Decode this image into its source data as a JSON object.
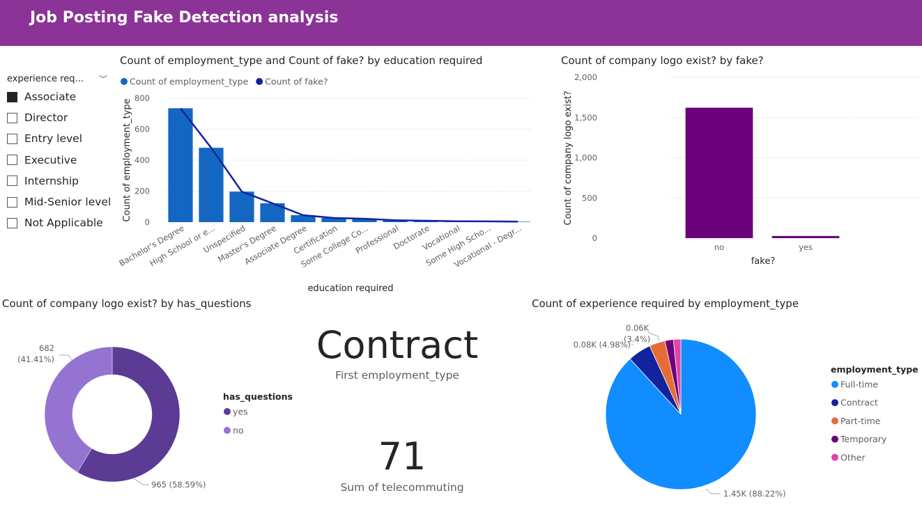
{
  "header": {
    "title": "Job Posting Fake Detection analysis",
    "color": "#8b3396"
  },
  "slicer": {
    "title": "experience req...",
    "items": [
      {
        "label": "Associate",
        "checked": true
      },
      {
        "label": "Director",
        "checked": false
      },
      {
        "label": "Entry level",
        "checked": false
      },
      {
        "label": "Executive",
        "checked": false
      },
      {
        "label": "Internship",
        "checked": false
      },
      {
        "label": "Mid-Senior level",
        "checked": false
      },
      {
        "label": "Not Applicable",
        "checked": false
      }
    ]
  },
  "cards": {
    "first_employment": {
      "value": "Contract",
      "label": "First employment_type"
    },
    "telecommuting": {
      "value": "71",
      "label": "Sum of telecommuting"
    }
  },
  "chart_data": [
    {
      "type": "bar",
      "title": "Count of employment_type and Count of fake? by education required",
      "xlabel": "education required",
      "ylabel": "Count of employment_type",
      "ylim": [
        0,
        800
      ],
      "yticks": [
        0,
        200,
        400,
        600,
        800
      ],
      "categories": [
        "Bachelor's Degree",
        "High School or e...",
        "Unspecified",
        "Master's Degree",
        "Associate Degree",
        "Certification",
        "Some College Co...",
        "Professional",
        "Doctorate",
        "Vocational",
        "Some High Scho...",
        "Vocational - Degr..."
      ],
      "series": [
        {
          "name": "Count of employment_type",
          "type": "bar",
          "color": "#1367c2",
          "values": [
            735,
            480,
            197,
            122,
            45,
            27,
            22,
            12,
            9,
            6,
            5,
            3
          ]
        },
        {
          "name": "Count of fake?",
          "type": "line",
          "color": "#12239e",
          "values": [
            735,
            480,
            197,
            122,
            45,
            27,
            22,
            12,
            9,
            6,
            5,
            3
          ]
        }
      ],
      "legend": "top-left",
      "grid": true
    },
    {
      "type": "bar",
      "title": "Count of company logo exist? by fake?",
      "xlabel": "fake?",
      "ylabel": "Count of company logo exist?",
      "ylim": [
        0,
        2000
      ],
      "yticks": [
        "0",
        "500",
        "1,000",
        "1,500",
        "2,000"
      ],
      "categories": [
        "no",
        "yes"
      ],
      "values": [
        1622,
        27
      ],
      "color": "#6b007b",
      "grid": true
    },
    {
      "type": "pie",
      "subtype": "donut",
      "title": "Count of company logo exist? by has_questions",
      "legend_title": "has_questions",
      "slices": [
        {
          "name": "yes",
          "value": 965,
          "label": "965 (58.59%)",
          "color": "#5b3b94"
        },
        {
          "name": "no",
          "value": 682,
          "label": "682 (41.41%)",
          "color": "#9473d1"
        }
      ]
    },
    {
      "type": "pie",
      "title": "Count of experience required by employment_type",
      "legend_title": "employment_type",
      "slices": [
        {
          "name": "Full-time",
          "value": 1450,
          "pct": 88.22,
          "label": "1.45K (88.22%)",
          "color": "#118dff"
        },
        {
          "name": "Contract",
          "value": 82,
          "pct": 4.98,
          "label": "0.08K (4.98%)",
          "color": "#12239e"
        },
        {
          "name": "Part-time",
          "value": 56,
          "pct": 3.4,
          "label_line1": "0.06K",
          "label_line2": "(3.4%)",
          "color": "#e66c37"
        },
        {
          "name": "Temporary",
          "value": 30,
          "pct": 1.8,
          "label": "",
          "color": "#6b007b"
        },
        {
          "name": "Other",
          "value": 26,
          "pct": 1.6,
          "label": "",
          "color": "#e044a7"
        }
      ]
    }
  ]
}
